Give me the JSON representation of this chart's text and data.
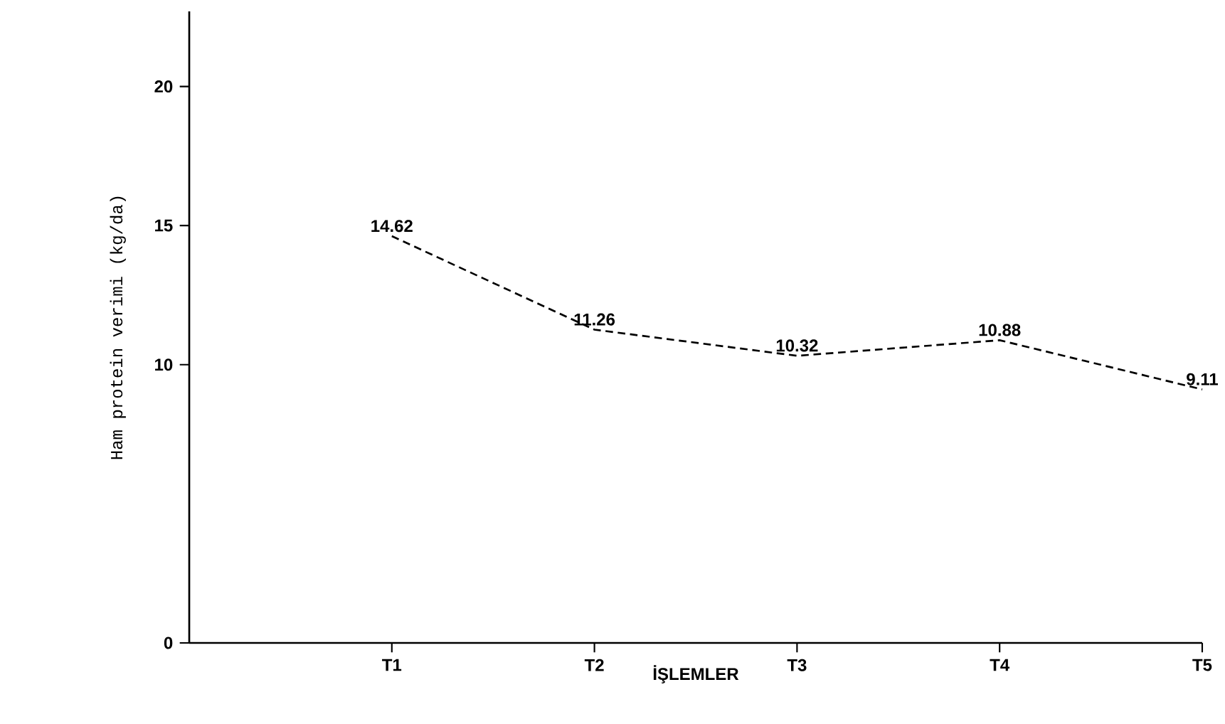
{
  "chart_data": {
    "type": "line",
    "xlabel": "İŞLEMLER",
    "ylabel": "Ham protein verimi (kg/da)",
    "categories": [
      "T1",
      "T2",
      "T3",
      "T4",
      "T5"
    ],
    "values": [
      14.62,
      11.26,
      10.32,
      10.88,
      9.11
    ],
    "color": "#000000",
    "line_style": "dashed",
    "marker": "none",
    "data_labels": true,
    "grid": false,
    "ylim": [
      0,
      22.7
    ],
    "yticks": [
      0,
      10,
      15,
      20
    ]
  }
}
